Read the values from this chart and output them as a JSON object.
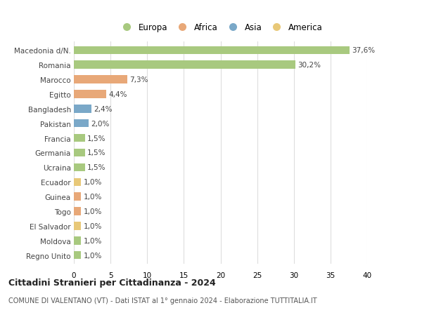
{
  "categories": [
    "Macedonia d/N.",
    "Romania",
    "Marocco",
    "Egitto",
    "Bangladesh",
    "Pakistan",
    "Francia",
    "Germania",
    "Ucraina",
    "Ecuador",
    "Guinea",
    "Togo",
    "El Salvador",
    "Moldova",
    "Regno Unito"
  ],
  "values": [
    37.6,
    30.2,
    7.3,
    4.4,
    2.4,
    2.0,
    1.5,
    1.5,
    1.5,
    1.0,
    1.0,
    1.0,
    1.0,
    1.0,
    1.0
  ],
  "labels": [
    "37,6%",
    "30,2%",
    "7,3%",
    "4,4%",
    "2,4%",
    "2,0%",
    "1,5%",
    "1,5%",
    "1,5%",
    "1,0%",
    "1,0%",
    "1,0%",
    "1,0%",
    "1,0%",
    "1,0%"
  ],
  "continents": [
    "Europa",
    "Europa",
    "Africa",
    "Africa",
    "Asia",
    "Asia",
    "Europa",
    "Europa",
    "Europa",
    "America",
    "Africa",
    "Africa",
    "America",
    "Europa",
    "Europa"
  ],
  "colors": {
    "Europa": "#a8c97f",
    "Africa": "#e8a878",
    "Asia": "#7aa8c8",
    "America": "#e8c878"
  },
  "legend_order": [
    "Europa",
    "Africa",
    "Asia",
    "America"
  ],
  "title": "Cittadini Stranieri per Cittadinanza - 2024",
  "subtitle": "COMUNE DI VALENTANO (VT) - Dati ISTAT al 1° gennaio 2024 - Elaborazione TUTTITALIA.IT",
  "xlim": [
    0,
    40
  ],
  "xticks": [
    0,
    5,
    10,
    15,
    20,
    25,
    30,
    35,
    40
  ],
  "bg_color": "#ffffff",
  "grid_color": "#dddddd",
  "bar_height": 0.55
}
